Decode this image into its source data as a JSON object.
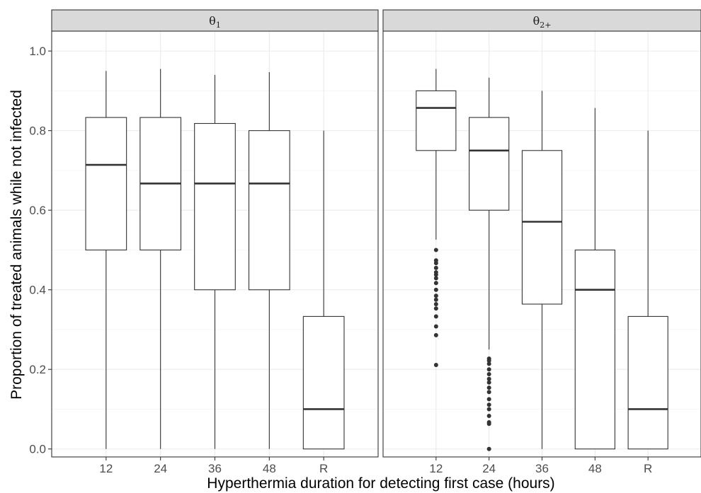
{
  "chart_data": {
    "type": "boxplot",
    "xlabel": "Hyperthermia duration for detecting first case (hours)",
    "ylabel": "Proportion of treated animals while not infected",
    "ylim": [
      -0.02,
      1.05
    ],
    "yticks": [
      0.0,
      0.2,
      0.4,
      0.6,
      0.8,
      1.0
    ],
    "ytick_labels": [
      "0.0",
      "0.2",
      "0.4",
      "0.6",
      "0.8",
      "1.0"
    ],
    "grid": true,
    "categories": [
      "12",
      "24",
      "36",
      "48",
      "R"
    ],
    "panels": [
      {
        "strip": "θ1",
        "strip_main": "θ",
        "strip_sub": "1",
        "boxes": [
          {
            "x": "12",
            "min": 0.0,
            "q1": 0.5,
            "median": 0.714,
            "q3": 0.833,
            "max": 0.95,
            "outliers": []
          },
          {
            "x": "24",
            "min": 0.0,
            "q1": 0.5,
            "median": 0.667,
            "q3": 0.833,
            "max": 0.955,
            "outliers": []
          },
          {
            "x": "36",
            "min": 0.0,
            "q1": 0.4,
            "median": 0.667,
            "q3": 0.818,
            "max": 0.94,
            "outliers": []
          },
          {
            "x": "48",
            "min": 0.0,
            "q1": 0.4,
            "median": 0.667,
            "q3": 0.8,
            "max": 0.947,
            "outliers": []
          },
          {
            "x": "R",
            "min": 0.0,
            "q1": 0.0,
            "median": 0.1,
            "q3": 0.333,
            "max": 0.8,
            "outliers": []
          }
        ]
      },
      {
        "strip": "θ2+",
        "strip_main": "θ",
        "strip_sub": "2+",
        "boxes": [
          {
            "x": "12",
            "min": 0.526,
            "q1": 0.75,
            "median": 0.857,
            "q3": 0.9,
            "max": 0.955,
            "outliers": [
              0.5,
              0.474,
              0.467,
              0.455,
              0.444,
              0.438,
              0.429,
              0.417,
              0.4,
              0.385,
              0.375,
              0.364,
              0.353,
              0.333,
              0.308,
              0.286,
              0.211
            ]
          },
          {
            "x": "24",
            "min": 0.25,
            "q1": 0.6,
            "median": 0.75,
            "q3": 0.833,
            "max": 0.933,
            "outliers": [
              0.227,
              0.222,
              0.214,
              0.2,
              0.188,
              0.176,
              0.167,
              0.154,
              0.143,
              0.125,
              0.111,
              0.1,
              0.083,
              0.067,
              0.063,
              0.0
            ]
          },
          {
            "x": "36",
            "min": 0.0,
            "q1": 0.364,
            "median": 0.571,
            "q3": 0.75,
            "max": 0.9,
            "outliers": []
          },
          {
            "x": "48",
            "min": 0.0,
            "q1": 0.0,
            "median": 0.4,
            "q3": 0.5,
            "max": 0.857,
            "outliers": []
          },
          {
            "x": "R",
            "min": 0.0,
            "q1": 0.0,
            "median": 0.1,
            "q3": 0.333,
            "max": 0.8,
            "outliers": []
          }
        ]
      }
    ]
  }
}
